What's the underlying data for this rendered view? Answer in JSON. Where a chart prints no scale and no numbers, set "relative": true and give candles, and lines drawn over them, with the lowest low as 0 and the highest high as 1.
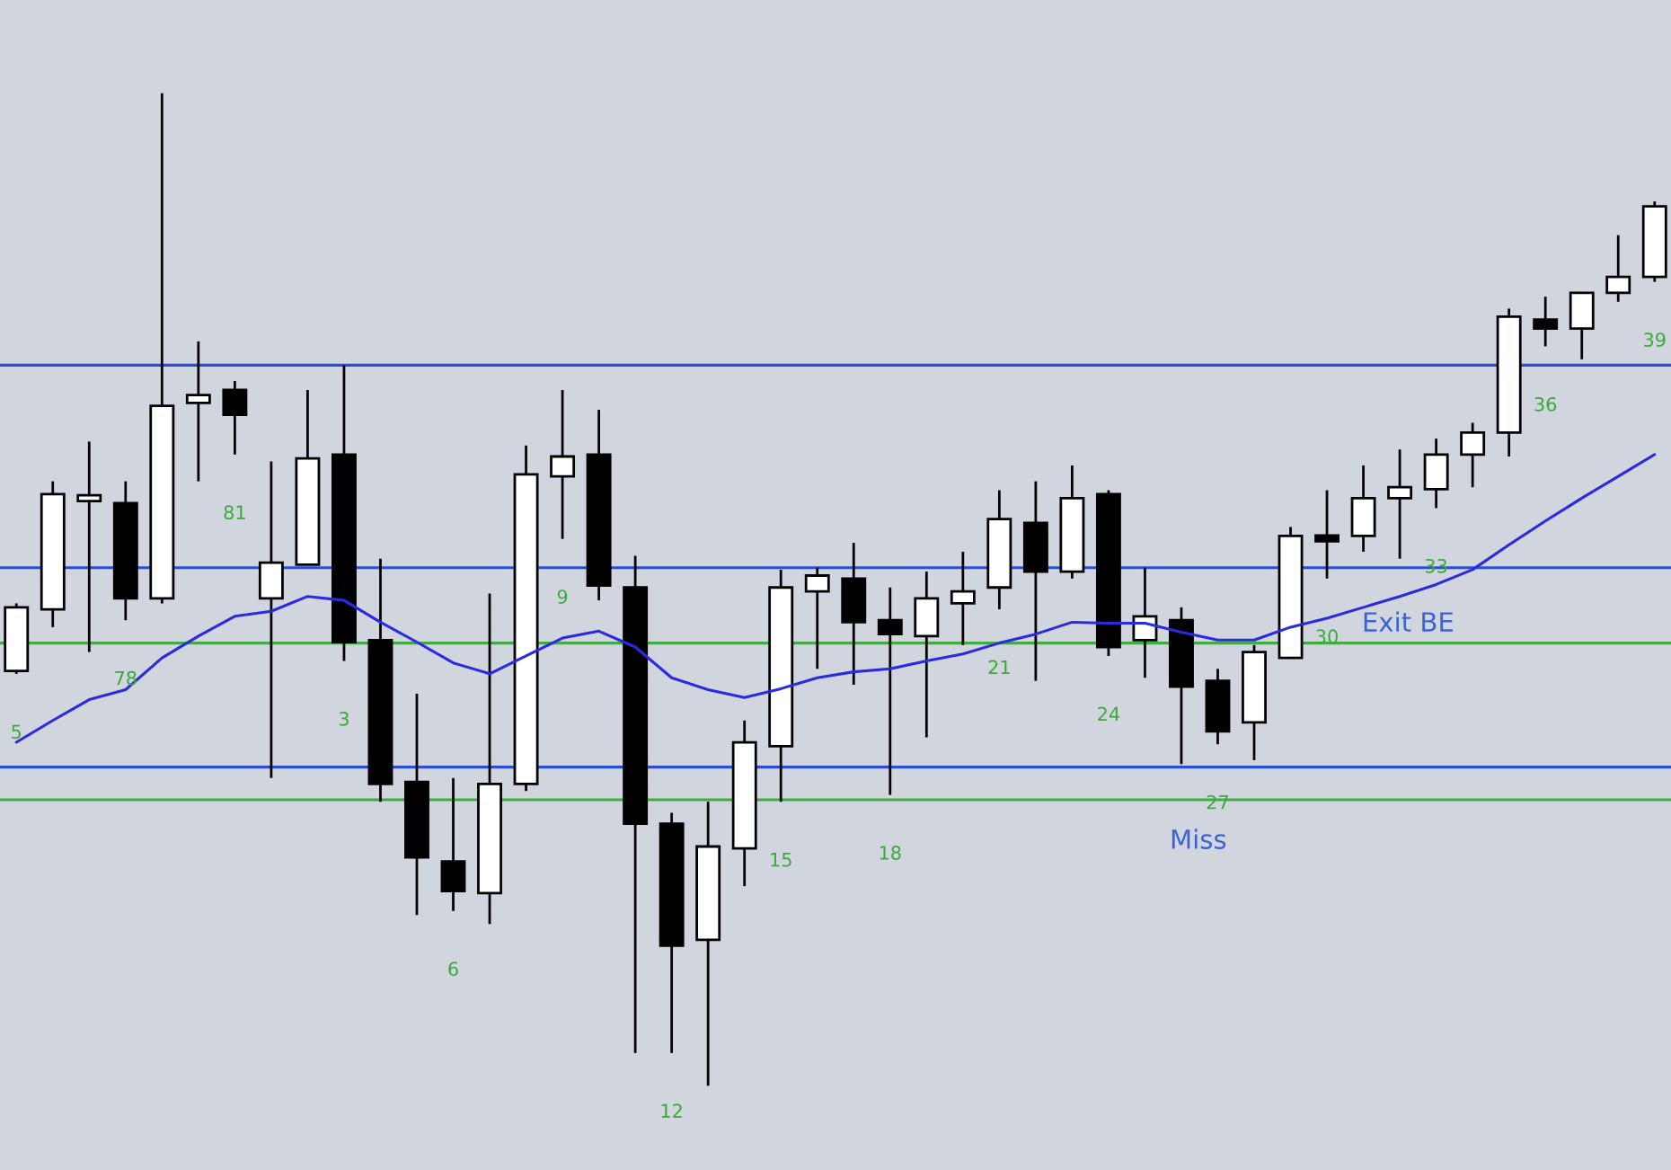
{
  "chart_data": {
    "type": "candlestick",
    "relative": true,
    "categories": [
      null,
      null,
      null,
      null,
      null,
      null,
      null,
      null,
      null,
      null,
      null,
      null,
      null,
      null,
      null,
      null,
      null,
      null,
      null,
      null,
      null,
      null,
      null,
      null,
      null,
      null,
      null,
      null,
      null,
      null,
      null,
      null,
      null,
      null,
      null,
      null,
      null,
      null,
      null,
      null,
      null,
      null,
      null,
      null,
      null,
      null
    ],
    "ohlc": [
      [
        0.418,
        0.486,
        0.415,
        0.482
      ],
      [
        0.48,
        0.609,
        0.462,
        0.596
      ],
      [
        0.592,
        0.649,
        0.437,
        0.592
      ],
      [
        0.587,
        0.609,
        0.469,
        0.491
      ],
      [
        0.491,
        1.0,
        0.486,
        0.685
      ],
      [
        0.688,
        0.75,
        0.609,
        0.696
      ],
      [
        0.701,
        0.71,
        0.636,
        0.676
      ],
      [
        0.491,
        0.629,
        0.31,
        0.527
      ],
      [
        0.525,
        0.701,
        0.525,
        0.632
      ],
      [
        0.636,
        0.726,
        0.428,
        0.447
      ],
      [
        0.449,
        0.531,
        0.286,
        0.304
      ],
      [
        0.306,
        0.395,
        0.172,
        0.23
      ],
      [
        0.226,
        0.31,
        0.176,
        0.196
      ],
      [
        0.194,
        0.496,
        0.163,
        0.304
      ],
      [
        0.304,
        0.645,
        0.297,
        0.616
      ],
      [
        0.614,
        0.701,
        0.551,
        0.634
      ],
      [
        0.636,
        0.681,
        0.489,
        0.504
      ],
      [
        0.502,
        0.534,
        0.033,
        0.264
      ],
      [
        0.264,
        0.275,
        0.033,
        0.141
      ],
      [
        0.147,
        0.286,
        0.0,
        0.241
      ],
      [
        0.239,
        0.368,
        0.201,
        0.346
      ],
      [
        0.342,
        0.52,
        0.286,
        0.502
      ],
      [
        0.498,
        0.522,
        0.42,
        0.514
      ],
      [
        0.511,
        0.547,
        0.404,
        0.467
      ],
      [
        0.469,
        0.502,
        0.293,
        0.455
      ],
      [
        0.453,
        0.518,
        0.351,
        0.491
      ],
      [
        0.486,
        0.538,
        0.444,
        0.498
      ],
      [
        0.502,
        0.6,
        0.48,
        0.571
      ],
      [
        0.567,
        0.609,
        0.408,
        0.518
      ],
      [
        0.518,
        0.625,
        0.511,
        0.592
      ],
      [
        0.596,
        0.6,
        0.433,
        0.442
      ],
      [
        0.449,
        0.522,
        0.411,
        0.473
      ],
      [
        0.469,
        0.482,
        0.324,
        0.402
      ],
      [
        0.408,
        0.42,
        0.344,
        0.357
      ],
      [
        0.366,
        0.444,
        0.328,
        0.437
      ],
      [
        0.431,
        0.563,
        0.431,
        0.554
      ],
      [
        0.554,
        0.6,
        0.511,
        0.549
      ],
      [
        0.554,
        0.625,
        0.538,
        0.592
      ],
      [
        0.592,
        0.641,
        0.531,
        0.603
      ],
      [
        0.601,
        0.652,
        0.582,
        0.636
      ],
      [
        0.636,
        0.668,
        0.603,
        0.658
      ],
      [
        0.658,
        0.783,
        0.634,
        0.775
      ],
      [
        0.772,
        0.795,
        0.745,
        0.763
      ],
      [
        0.763,
        0.799,
        0.732,
        0.799
      ],
      [
        0.799,
        0.857,
        0.79,
        0.815
      ],
      [
        0.815,
        0.891,
        0.81,
        0.886
      ]
    ],
    "value_labels": [
      "5",
      null,
      null,
      "78",
      null,
      null,
      "81",
      null,
      null,
      "3",
      null,
      null,
      "6",
      null,
      null,
      "9",
      null,
      null,
      "12",
      null,
      null,
      "15",
      null,
      null,
      "18",
      null,
      null,
      "21",
      null,
      null,
      "24",
      null,
      null,
      "27",
      null,
      null,
      "30",
      null,
      null,
      "33",
      null,
      null,
      "36",
      null,
      null,
      "39"
    ],
    "series": [
      {
        "type": "line",
        "color": "#2a2ae0",
        "values": [
          0.346,
          0.368,
          0.389,
          0.399,
          0.431,
          0.453,
          0.473,
          0.478,
          0.493,
          0.489,
          0.467,
          0.447,
          0.426,
          0.415,
          0.433,
          0.451,
          0.458,
          0.442,
          0.411,
          0.399,
          0.391,
          0.4,
          0.411,
          0.417,
          0.42,
          0.428,
          0.435,
          0.446,
          0.455,
          0.467,
          0.466,
          0.466,
          0.457,
          0.449,
          0.449,
          0.462,
          0.471,
          0.482,
          0.493,
          0.505,
          0.52,
          0.545,
          0.569,
          0.592,
          0.614,
          0.636
        ]
      }
    ],
    "ref_lines": [
      {
        "axis": "y",
        "value": 0.726,
        "color": "#2a4fd6"
      },
      {
        "axis": "y",
        "value": 0.522,
        "color": "#2a4fd6"
      },
      {
        "axis": "y",
        "value": 0.321,
        "color": "#2a4fd6",
        "label": "Miss"
      },
      {
        "axis": "y",
        "value": 0.288,
        "color": "#44aa44"
      },
      {
        "axis": "y",
        "value": 0.446,
        "color": "#44aa44",
        "label": "Exit BE"
      }
    ]
  }
}
